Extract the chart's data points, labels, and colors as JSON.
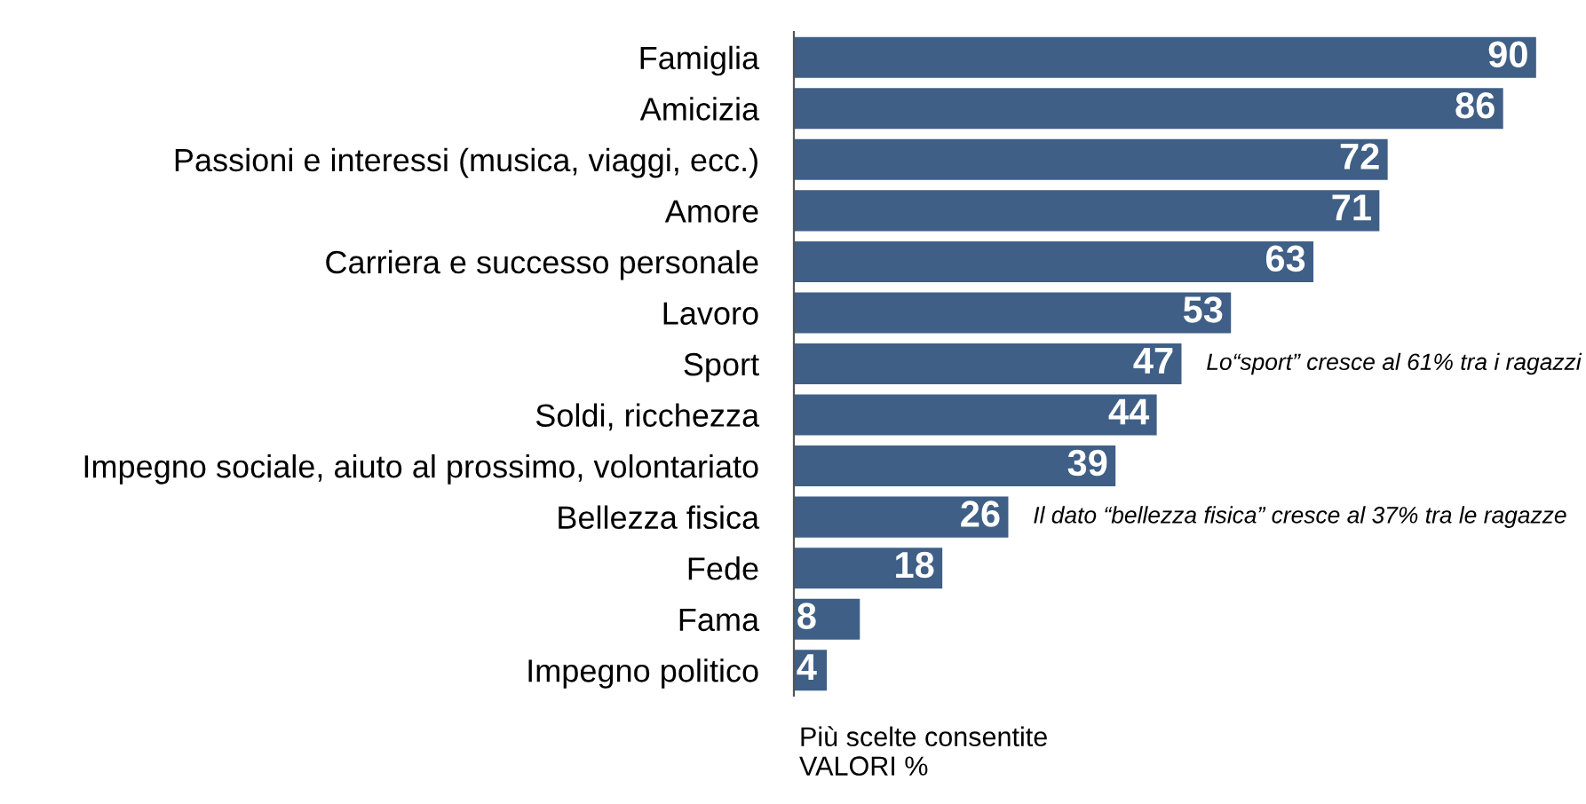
{
  "chart_data": {
    "type": "bar",
    "orientation": "horizontal",
    "color": "#3f5f86",
    "data_labels": true,
    "grid": false,
    "legend": false,
    "tick_labels": "y",
    "categories": [
      "Famiglia",
      "Amicizia",
      "Passioni e interessi (musica, viaggi, ecc.)",
      "Amore",
      "Carriera e successo personale",
      "Lavoro",
      "Sport",
      "Soldi, ricchezza",
      "Impegno sociale, aiuto al prossimo, volontariato",
      "Bellezza fisica",
      "Fede",
      "Fama",
      "Impegno politico"
    ],
    "values": [
      90,
      86,
      72,
      71,
      63,
      53,
      47,
      44,
      39,
      26,
      18,
      8,
      4
    ],
    "annotations": [
      {
        "text": "Lo“sport” cresce al 61% tra i ragazzi",
        "x": 47,
        "y": "Sport"
      },
      {
        "text": "Il dato “bellezza fisica” cresce al 37% tra le ragazze",
        "x": 26,
        "y": "Bellezza fisica"
      },
      "Più scelte consentite\nVALORI %"
    ]
  }
}
